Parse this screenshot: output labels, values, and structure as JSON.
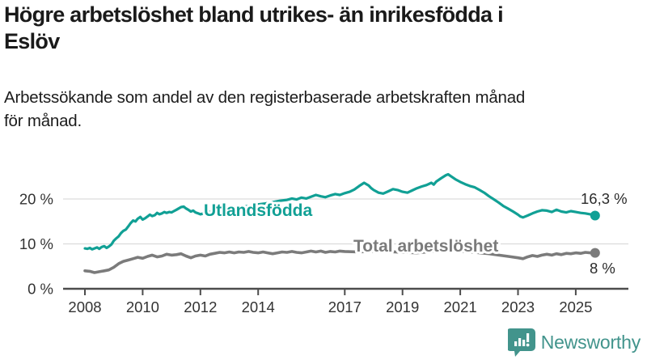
{
  "header": {
    "title": "Högre arbetslöshet bland utrikes- än inrikesfödda i\nEslöv",
    "subtitle": "Arbetssökande som andel av den registerbaserade arbetskraften månad\nför månad."
  },
  "footer": {
    "brand": "Newsworthy"
  },
  "colors": {
    "accent_teal": "#11a095",
    "series_gray": "#7b7b7b",
    "axis": "#4c4c4c",
    "grid": "#dcdcdc",
    "tick_text": "#333333",
    "value_text": "#2b2b2b",
    "title_text": "#1a1a1a",
    "logo_teal": "#42948c"
  },
  "chart_data": {
    "type": "line",
    "title": "Högre arbetslöshet bland utrikes- än inrikesfödda i Eslöv",
    "xlabel": "",
    "ylabel": "Arbetssökande som andel av den registerbaserade arbetskraften",
    "unit": "%",
    "xlim": [
      2007.8,
      2026.2
    ],
    "ylim": [
      0,
      27
    ],
    "grid": "horizontal",
    "legend_position": "inline-labels",
    "yticks": [
      {
        "value": 0,
        "label": "0 %"
      },
      {
        "value": 10,
        "label": "10 %"
      },
      {
        "value": 20,
        "label": "20 %"
      }
    ],
    "xticks": [
      {
        "value": 2008,
        "label": "2008"
      },
      {
        "value": 2010,
        "label": "2010"
      },
      {
        "value": 2012,
        "label": "2012"
      },
      {
        "value": 2014,
        "label": "2014"
      },
      {
        "value": 2017,
        "label": "2017"
      },
      {
        "value": 2019,
        "label": "2019"
      },
      {
        "value": 2021,
        "label": "2021"
      },
      {
        "value": 2023,
        "label": "2023"
      },
      {
        "value": 2025,
        "label": "2025"
      }
    ],
    "series": [
      {
        "name": "Utlandsfödda",
        "color": "#11a095",
        "end_value_label": "16,3 %",
        "end_value": 16.3,
        "points": [
          [
            2008.0,
            9.0
          ],
          [
            2008.08,
            8.9
          ],
          [
            2008.17,
            9.1
          ],
          [
            2008.25,
            8.8
          ],
          [
            2008.33,
            9.0
          ],
          [
            2008.42,
            9.2
          ],
          [
            2008.5,
            8.9
          ],
          [
            2008.58,
            9.3
          ],
          [
            2008.67,
            9.5
          ],
          [
            2008.75,
            9.1
          ],
          [
            2008.83,
            9.4
          ],
          [
            2008.92,
            9.9
          ],
          [
            2009.0,
            10.7
          ],
          [
            2009.08,
            11.2
          ],
          [
            2009.17,
            11.7
          ],
          [
            2009.25,
            12.4
          ],
          [
            2009.33,
            12.9
          ],
          [
            2009.42,
            13.2
          ],
          [
            2009.5,
            13.9
          ],
          [
            2009.58,
            14.6
          ],
          [
            2009.67,
            15.2
          ],
          [
            2009.75,
            15.0
          ],
          [
            2009.83,
            15.6
          ],
          [
            2009.92,
            16.0
          ],
          [
            2010.0,
            15.4
          ],
          [
            2010.08,
            15.7
          ],
          [
            2010.17,
            16.1
          ],
          [
            2010.25,
            16.5
          ],
          [
            2010.33,
            16.2
          ],
          [
            2010.42,
            16.4
          ],
          [
            2010.5,
            16.9
          ],
          [
            2010.58,
            16.6
          ],
          [
            2010.67,
            16.8
          ],
          [
            2010.75,
            17.1
          ],
          [
            2010.83,
            16.9
          ],
          [
            2010.92,
            17.1
          ],
          [
            2011.0,
            17.0
          ],
          [
            2011.08,
            17.3
          ],
          [
            2011.17,
            17.6
          ],
          [
            2011.25,
            17.9
          ],
          [
            2011.33,
            18.2
          ],
          [
            2011.42,
            18.3
          ],
          [
            2011.5,
            17.9
          ],
          [
            2011.58,
            17.6
          ],
          [
            2011.67,
            17.2
          ],
          [
            2011.75,
            17.4
          ],
          [
            2011.83,
            17.0
          ],
          [
            2011.92,
            16.8
          ],
          [
            2012.0,
            16.6
          ],
          [
            2012.17,
            16.9
          ],
          [
            2012.33,
            17.2
          ],
          [
            2012.5,
            17.0
          ],
          [
            2012.67,
            17.3
          ],
          [
            2012.83,
            17.6
          ],
          [
            2013.0,
            17.8
          ],
          [
            2013.25,
            18.0
          ],
          [
            2013.5,
            18.3
          ],
          [
            2013.75,
            18.5
          ],
          [
            2014.0,
            18.8
          ],
          [
            2014.25,
            19.0
          ],
          [
            2014.5,
            19.3
          ],
          [
            2014.75,
            19.6
          ],
          [
            2015.0,
            19.8
          ],
          [
            2015.17,
            20.1
          ],
          [
            2015.33,
            19.9
          ],
          [
            2015.5,
            20.3
          ],
          [
            2015.67,
            20.1
          ],
          [
            2015.83,
            20.5
          ],
          [
            2016.0,
            20.9
          ],
          [
            2016.17,
            20.6
          ],
          [
            2016.33,
            20.4
          ],
          [
            2016.5,
            20.8
          ],
          [
            2016.67,
            21.1
          ],
          [
            2016.83,
            20.9
          ],
          [
            2017.0,
            21.3
          ],
          [
            2017.17,
            21.6
          ],
          [
            2017.33,
            22.1
          ],
          [
            2017.5,
            22.9
          ],
          [
            2017.67,
            23.6
          ],
          [
            2017.83,
            23.0
          ],
          [
            2017.92,
            22.4
          ],
          [
            2018.0,
            22.0
          ],
          [
            2018.17,
            21.4
          ],
          [
            2018.33,
            21.2
          ],
          [
            2018.5,
            21.7
          ],
          [
            2018.67,
            22.2
          ],
          [
            2018.83,
            22.0
          ],
          [
            2019.0,
            21.6
          ],
          [
            2019.17,
            21.4
          ],
          [
            2019.33,
            21.9
          ],
          [
            2019.5,
            22.4
          ],
          [
            2019.67,
            22.8
          ],
          [
            2019.83,
            23.1
          ],
          [
            2020.0,
            23.6
          ],
          [
            2020.08,
            23.2
          ],
          [
            2020.17,
            23.9
          ],
          [
            2020.33,
            24.6
          ],
          [
            2020.5,
            25.3
          ],
          [
            2020.58,
            25.5
          ],
          [
            2020.67,
            25.1
          ],
          [
            2020.83,
            24.4
          ],
          [
            2021.0,
            23.8
          ],
          [
            2021.17,
            23.3
          ],
          [
            2021.33,
            22.9
          ],
          [
            2021.5,
            22.6
          ],
          [
            2021.67,
            22.0
          ],
          [
            2021.83,
            21.4
          ],
          [
            2022.0,
            20.6
          ],
          [
            2022.17,
            19.9
          ],
          [
            2022.33,
            19.2
          ],
          [
            2022.5,
            18.4
          ],
          [
            2022.67,
            17.8
          ],
          [
            2022.83,
            17.2
          ],
          [
            2023.0,
            16.5
          ],
          [
            2023.08,
            16.1
          ],
          [
            2023.17,
            15.9
          ],
          [
            2023.33,
            16.3
          ],
          [
            2023.5,
            16.8
          ],
          [
            2023.67,
            17.2
          ],
          [
            2023.83,
            17.5
          ],
          [
            2024.0,
            17.4
          ],
          [
            2024.17,
            17.1
          ],
          [
            2024.33,
            17.6
          ],
          [
            2024.5,
            17.2
          ],
          [
            2024.67,
            17.0
          ],
          [
            2024.83,
            17.3
          ],
          [
            2025.0,
            17.1
          ],
          [
            2025.17,
            16.9
          ],
          [
            2025.33,
            16.8
          ],
          [
            2025.5,
            16.6
          ],
          [
            2025.67,
            16.3
          ]
        ]
      },
      {
        "name": "Total arbetslöshet",
        "color": "#7b7b7b",
        "end_value_label": "8 %",
        "end_value": 8,
        "points": [
          [
            2008.0,
            4.0
          ],
          [
            2008.17,
            3.9
          ],
          [
            2008.33,
            3.6
          ],
          [
            2008.5,
            3.8
          ],
          [
            2008.67,
            4.0
          ],
          [
            2008.83,
            4.2
          ],
          [
            2009.0,
            4.8
          ],
          [
            2009.17,
            5.6
          ],
          [
            2009.33,
            6.1
          ],
          [
            2009.5,
            6.4
          ],
          [
            2009.67,
            6.7
          ],
          [
            2009.83,
            7.0
          ],
          [
            2010.0,
            6.8
          ],
          [
            2010.17,
            7.2
          ],
          [
            2010.33,
            7.5
          ],
          [
            2010.5,
            7.1
          ],
          [
            2010.67,
            7.3
          ],
          [
            2010.83,
            7.7
          ],
          [
            2011.0,
            7.5
          ],
          [
            2011.17,
            7.6
          ],
          [
            2011.33,
            7.8
          ],
          [
            2011.5,
            7.3
          ],
          [
            2011.67,
            6.9
          ],
          [
            2011.83,
            7.3
          ],
          [
            2012.0,
            7.5
          ],
          [
            2012.17,
            7.3
          ],
          [
            2012.33,
            7.7
          ],
          [
            2012.5,
            7.9
          ],
          [
            2012.67,
            8.1
          ],
          [
            2012.83,
            8.0
          ],
          [
            2013.0,
            8.2
          ],
          [
            2013.17,
            8.0
          ],
          [
            2013.33,
            8.2
          ],
          [
            2013.5,
            8.1
          ],
          [
            2013.67,
            8.3
          ],
          [
            2013.83,
            8.1
          ],
          [
            2014.0,
            8.0
          ],
          [
            2014.17,
            8.2
          ],
          [
            2014.33,
            8.0
          ],
          [
            2014.5,
            7.8
          ],
          [
            2014.67,
            8.0
          ],
          [
            2014.83,
            8.2
          ],
          [
            2015.0,
            8.1
          ],
          [
            2015.17,
            8.3
          ],
          [
            2015.33,
            8.1
          ],
          [
            2015.5,
            8.0
          ],
          [
            2015.67,
            8.2
          ],
          [
            2015.83,
            8.4
          ],
          [
            2016.0,
            8.2
          ],
          [
            2016.17,
            8.4
          ],
          [
            2016.33,
            8.1
          ],
          [
            2016.5,
            8.3
          ],
          [
            2016.67,
            8.2
          ],
          [
            2016.83,
            8.4
          ],
          [
            2017.0,
            8.3
          ],
          [
            2017.5,
            8.2
          ],
          [
            2018.0,
            8.4
          ],
          [
            2018.5,
            8.3
          ],
          [
            2019.0,
            8.1
          ],
          [
            2019.5,
            8.0
          ],
          [
            2020.0,
            8.3
          ],
          [
            2020.5,
            8.6
          ],
          [
            2021.0,
            8.4
          ],
          [
            2021.5,
            8.1
          ],
          [
            2022.0,
            7.8
          ],
          [
            2022.33,
            7.5
          ],
          [
            2022.67,
            7.2
          ],
          [
            2023.0,
            6.9
          ],
          [
            2023.17,
            6.7
          ],
          [
            2023.33,
            7.1
          ],
          [
            2023.5,
            7.4
          ],
          [
            2023.67,
            7.2
          ],
          [
            2023.83,
            7.5
          ],
          [
            2024.0,
            7.7
          ],
          [
            2024.17,
            7.5
          ],
          [
            2024.33,
            7.8
          ],
          [
            2024.5,
            7.6
          ],
          [
            2024.67,
            7.9
          ],
          [
            2024.83,
            7.8
          ],
          [
            2025.0,
            8.0
          ],
          [
            2025.17,
            7.9
          ],
          [
            2025.33,
            8.1
          ],
          [
            2025.5,
            8.0
          ],
          [
            2025.67,
            8.0
          ]
        ]
      }
    ]
  }
}
